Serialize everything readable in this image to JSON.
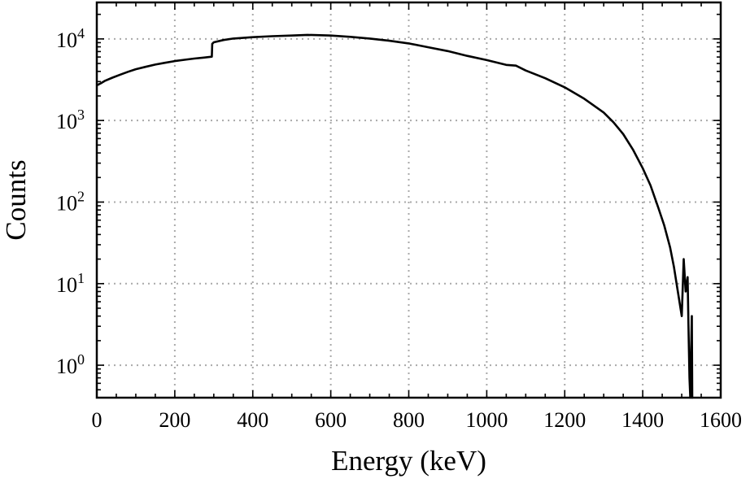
{
  "chart_data": {
    "type": "line",
    "title": "",
    "xlabel": "Energy (keV)",
    "ylabel": "Counts",
    "xlim": [
      0,
      1600
    ],
    "ylim": [
      0.4,
      28000
    ],
    "yscale": "log",
    "grid": true,
    "x_ticks": [
      0,
      200,
      400,
      600,
      800,
      1000,
      1200,
      1400,
      1600
    ],
    "y_ticks": [
      1,
      10,
      100,
      1000,
      10000
    ],
    "y_tick_labels": [
      {
        "base": "10",
        "exp": "0"
      },
      {
        "base": "10",
        "exp": "1"
      },
      {
        "base": "10",
        "exp": "2"
      },
      {
        "base": "10",
        "exp": "3"
      },
      {
        "base": "10",
        "exp": "4"
      }
    ],
    "series": [
      {
        "color": "#000000",
        "points": [
          [
            0,
            2700
          ],
          [
            10,
            2850
          ],
          [
            20,
            3050
          ],
          [
            40,
            3350
          ],
          [
            60,
            3650
          ],
          [
            80,
            3950
          ],
          [
            100,
            4250
          ],
          [
            125,
            4550
          ],
          [
            150,
            4850
          ],
          [
            175,
            5100
          ],
          [
            200,
            5350
          ],
          [
            225,
            5550
          ],
          [
            250,
            5750
          ],
          [
            275,
            5900
          ],
          [
            295,
            6050
          ],
          [
            296,
            8700
          ],
          [
            300,
            9100
          ],
          [
            325,
            9700
          ],
          [
            350,
            10100
          ],
          [
            400,
            10500
          ],
          [
            450,
            10800
          ],
          [
            500,
            11000
          ],
          [
            540,
            11200
          ],
          [
            600,
            11000
          ],
          [
            650,
            10600
          ],
          [
            700,
            10100
          ],
          [
            750,
            9500
          ],
          [
            800,
            8800
          ],
          [
            850,
            7900
          ],
          [
            900,
            7100
          ],
          [
            950,
            6200
          ],
          [
            1000,
            5500
          ],
          [
            1050,
            4800
          ],
          [
            1075,
            4700
          ],
          [
            1100,
            4100
          ],
          [
            1150,
            3300
          ],
          [
            1200,
            2550
          ],
          [
            1250,
            1850
          ],
          [
            1300,
            1250
          ],
          [
            1325,
            950
          ],
          [
            1350,
            680
          ],
          [
            1375,
            440
          ],
          [
            1400,
            260
          ],
          [
            1420,
            160
          ],
          [
            1440,
            85
          ],
          [
            1455,
            52
          ],
          [
            1470,
            28
          ],
          [
            1480,
            16
          ],
          [
            1490,
            8
          ],
          [
            1500,
            4
          ],
          [
            1505,
            20
          ],
          [
            1510,
            8
          ],
          [
            1515,
            12
          ],
          [
            1518,
            2
          ],
          [
            1520,
            0.7
          ],
          [
            1522,
            0.3
          ],
          [
            1524,
            1.5
          ],
          [
            1526,
            4
          ],
          [
            1527,
            0.3
          ],
          [
            1528,
            0.3
          ]
        ]
      }
    ]
  }
}
